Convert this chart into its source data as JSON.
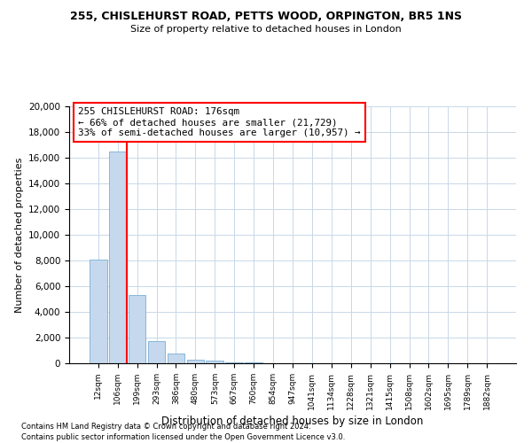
{
  "title1": "255, CHISLEHURST ROAD, PETTS WOOD, ORPINGTON, BR5 1NS",
  "title2": "Size of property relative to detached houses in London",
  "xlabel": "Distribution of detached houses by size in London",
  "ylabel": "Number of detached properties",
  "bar_labels": [
    "12sqm",
    "106sqm",
    "199sqm",
    "293sqm",
    "386sqm",
    "480sqm",
    "573sqm",
    "667sqm",
    "760sqm",
    "854sqm",
    "947sqm",
    "1041sqm",
    "1134sqm",
    "1228sqm",
    "1321sqm",
    "1415sqm",
    "1508sqm",
    "1602sqm",
    "1695sqm",
    "1789sqm",
    "1882sqm"
  ],
  "bar_heights": [
    8100,
    16500,
    5300,
    1750,
    750,
    300,
    230,
    100,
    80,
    20,
    0,
    0,
    0,
    0,
    0,
    0,
    0,
    0,
    0,
    0,
    0
  ],
  "bar_color": "#c5d8ed",
  "bar_edgecolor": "#7aafd4",
  "vline_color": "red",
  "annotation_text": "255 CHISLEHURST ROAD: 176sqm\n← 66% of detached houses are smaller (21,729)\n33% of semi-detached houses are larger (10,957) →",
  "ylim": [
    0,
    20000
  ],
  "yticks": [
    0,
    2000,
    4000,
    6000,
    8000,
    10000,
    12000,
    14000,
    16000,
    18000,
    20000
  ],
  "footnote1": "Contains HM Land Registry data © Crown copyright and database right 2024.",
  "footnote2": "Contains public sector information licensed under the Open Government Licence v3.0.",
  "bg_color": "#ffffff",
  "grid_color": "#c8d8e8"
}
